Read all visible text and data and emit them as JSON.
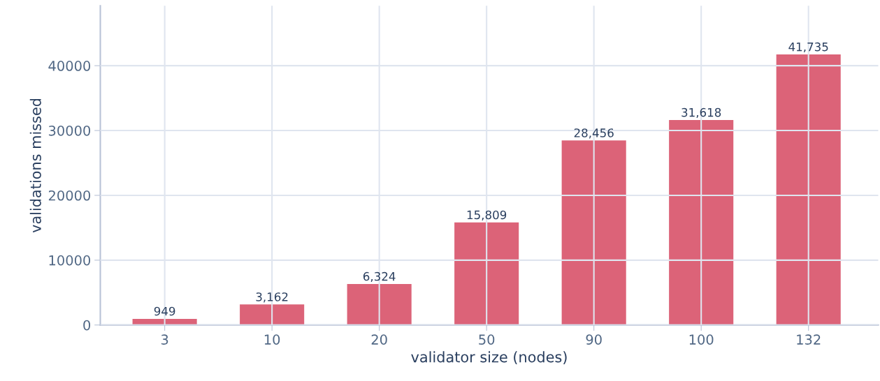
{
  "chart_data": {
    "type": "bar",
    "xlabel": "validator size (nodes)",
    "ylabel": "validations missed",
    "categories": [
      "3",
      "10",
      "20",
      "50",
      "90",
      "100",
      "132"
    ],
    "values": [
      949,
      3162,
      6324,
      15809,
      28456,
      31618,
      41735
    ],
    "value_labels": [
      "949",
      "3,162",
      "6,324",
      "15,809",
      "28,456",
      "31,618",
      "41,735"
    ],
    "color": "#dc6378",
    "ylim": [
      0,
      49250
    ],
    "yticks": [
      0,
      10000,
      20000,
      30000,
      40000
    ],
    "grid": true
  }
}
